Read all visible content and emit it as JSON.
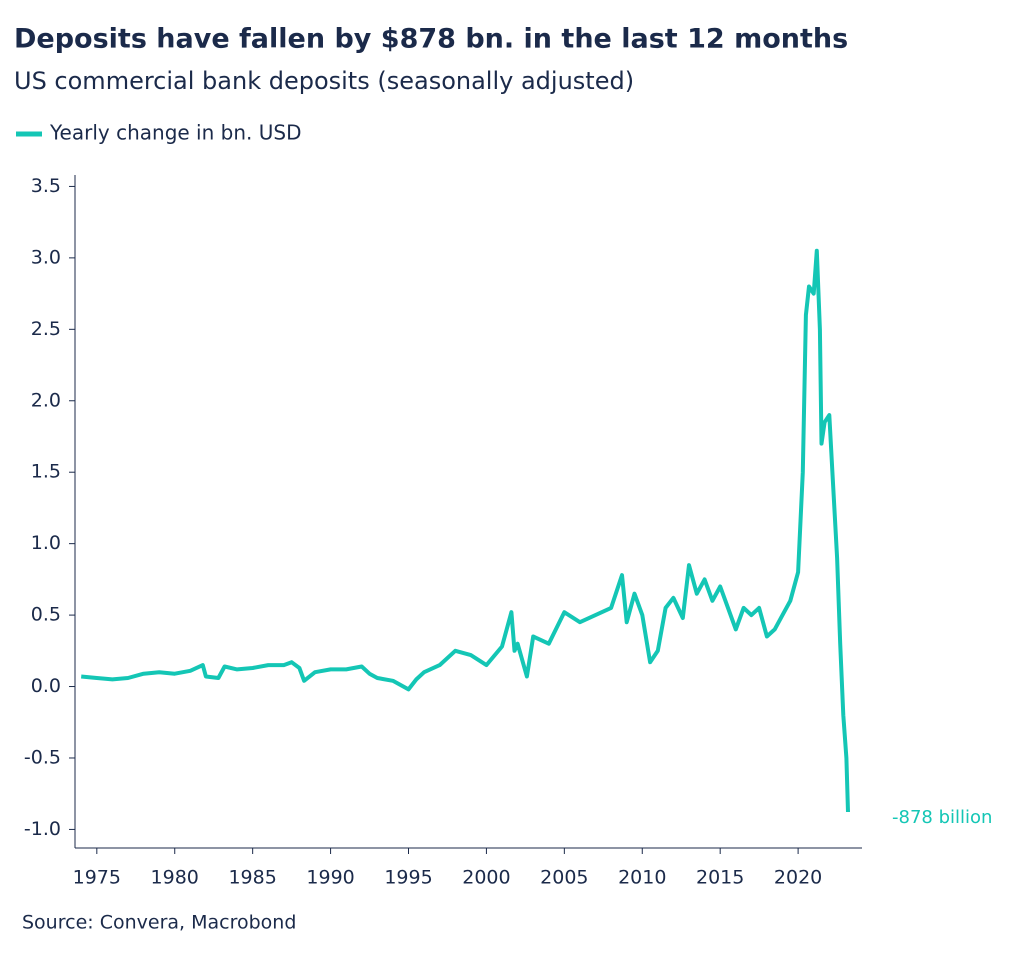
{
  "chart_data": {
    "type": "line",
    "title": "Deposits have fallen by $878 bn. in the last 12 months",
    "subtitle": "US commercial bank deposits (seasonally adjusted)",
    "source": "Source: Convera, Macrobond",
    "annotation": "-878 billion",
    "x": [
      1974.0,
      1975.0,
      1976.0,
      1977.0,
      1978.0,
      1979.0,
      1980.0,
      1981.0,
      1981.8,
      1982.0,
      1982.8,
      1983.2,
      1984.0,
      1985.0,
      1986.0,
      1987.0,
      1987.5,
      1988.0,
      1988.3,
      1989.0,
      1990.0,
      1991.0,
      1992.0,
      1992.5,
      1993.0,
      1994.0,
      1995.0,
      1995.5,
      1996.0,
      1997.0,
      1998.0,
      1999.0,
      2000.0,
      2001.0,
      2001.6,
      2001.8,
      2002.0,
      2002.6,
      2003.0,
      2004.0,
      2005.0,
      2006.0,
      2007.0,
      2008.0,
      2008.7,
      2009.0,
      2009.5,
      2010.0,
      2010.5,
      2011.0,
      2011.5,
      2012.0,
      2012.6,
      2013.0,
      2013.5,
      2014.0,
      2014.5,
      2015.0,
      2015.5,
      2016.0,
      2016.5,
      2017.0,
      2017.5,
      2018.0,
      2018.5,
      2019.0,
      2019.5,
      2020.0,
      2020.3,
      2020.5,
      2020.7,
      2021.0,
      2021.2,
      2021.4,
      2021.5,
      2021.7,
      2022.0,
      2022.2,
      2022.5,
      2022.7,
      2022.9,
      2023.1,
      2023.2
    ],
    "series": [
      {
        "name": "Yearly change in bn. USD",
        "color": "#14c6b5",
        "values": [
          0.07,
          0.06,
          0.05,
          0.06,
          0.09,
          0.1,
          0.09,
          0.11,
          0.15,
          0.07,
          0.06,
          0.14,
          0.12,
          0.13,
          0.15,
          0.15,
          0.17,
          0.13,
          0.04,
          0.1,
          0.12,
          0.12,
          0.14,
          0.09,
          0.06,
          0.04,
          -0.02,
          0.05,
          0.1,
          0.15,
          0.25,
          0.22,
          0.15,
          0.28,
          0.52,
          0.25,
          0.3,
          0.07,
          0.35,
          0.3,
          0.52,
          0.45,
          0.5,
          0.55,
          0.78,
          0.45,
          0.65,
          0.5,
          0.17,
          0.25,
          0.55,
          0.62,
          0.48,
          0.85,
          0.65,
          0.75,
          0.6,
          0.7,
          0.55,
          0.4,
          0.55,
          0.5,
          0.55,
          0.35,
          0.4,
          0.5,
          0.6,
          0.8,
          1.5,
          2.6,
          2.8,
          2.75,
          3.05,
          2.5,
          1.7,
          1.85,
          1.9,
          1.5,
          0.9,
          0.3,
          -0.2,
          -0.5,
          -0.878
        ]
      }
    ],
    "xlim": [
      1973.6,
      2024.1
    ],
    "xticks": [
      1975,
      1980,
      1985,
      1990,
      1995,
      2000,
      2005,
      2010,
      2015,
      2020
    ],
    "ylim": [
      -1.13,
      3.58
    ],
    "yticks": [
      {
        "value": -1,
        "label": "-1.0"
      },
      -0.5,
      {
        "value": 0,
        "label": "0.0"
      },
      0.5,
      {
        "value": 1,
        "label": "1.0"
      },
      1.5,
      {
        "value": 2,
        "label": "2.0"
      },
      2.5,
      {
        "value": 3,
        "label": "3.0"
      },
      3.5
    ],
    "grid": false
  }
}
